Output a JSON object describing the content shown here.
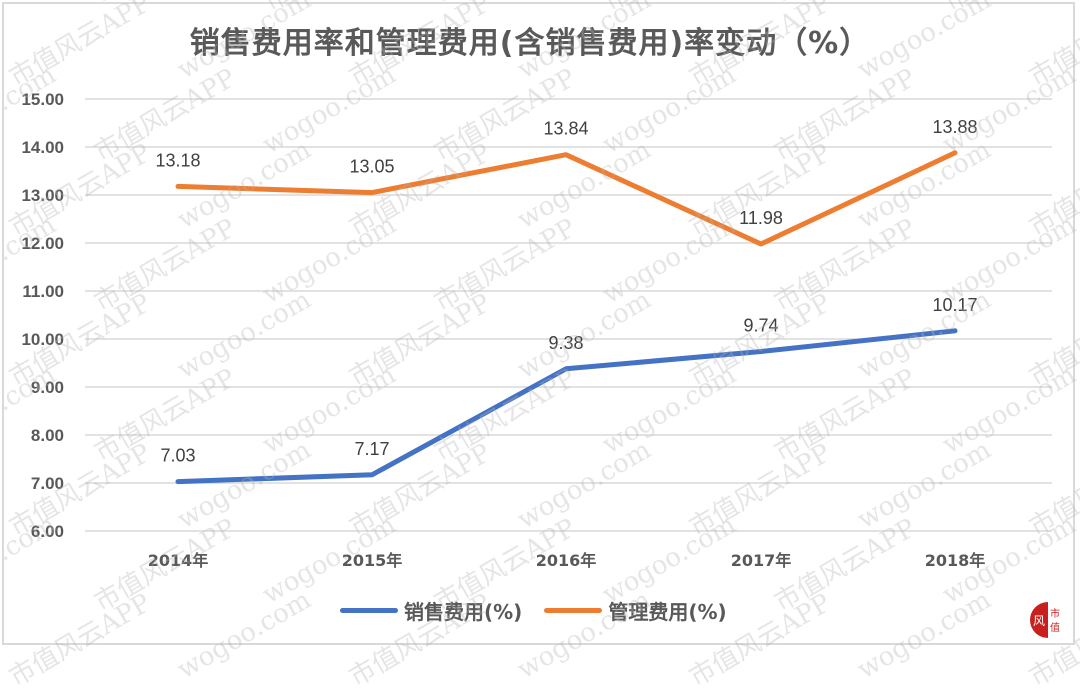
{
  "chart_data": {
    "type": "line",
    "title": "销售费用率和管理费用(含销售费用)率变动（%）",
    "xlabel": "",
    "ylabel": "",
    "categories": [
      "2014年",
      "2015年",
      "2016年",
      "2017年",
      "2018年"
    ],
    "series": [
      {
        "name": "销售费用(%)",
        "color": "#4472c4",
        "values": [
          7.03,
          7.17,
          9.38,
          9.74,
          10.17
        ]
      },
      {
        "name": "管理费用(%)",
        "color": "#ed7d31",
        "values": [
          13.18,
          13.05,
          13.84,
          11.98,
          13.88
        ]
      }
    ],
    "ylim": [
      6.0,
      15.0
    ],
    "yticks": [
      "15.00",
      "14.00",
      "13.00",
      "12.00",
      "11.00",
      "10.00",
      "9.00",
      "8.00",
      "7.00",
      "6.00"
    ],
    "grid": true,
    "legend_position": "bottom",
    "data_labels": true
  },
  "title": "销售费用率和管理费用(含销售费用)率变动（%）",
  "legend": [
    {
      "label": "销售费用(%)",
      "color": "#4472c4"
    },
    {
      "label": "管理费用(%)",
      "color": "#ed7d31"
    }
  ],
  "watermark": {
    "text_a": "wogoo.com",
    "text_b": "市值风云APP"
  },
  "logo": {
    "text_left": "风",
    "text_right": "市值",
    "color": "#c8201f"
  }
}
